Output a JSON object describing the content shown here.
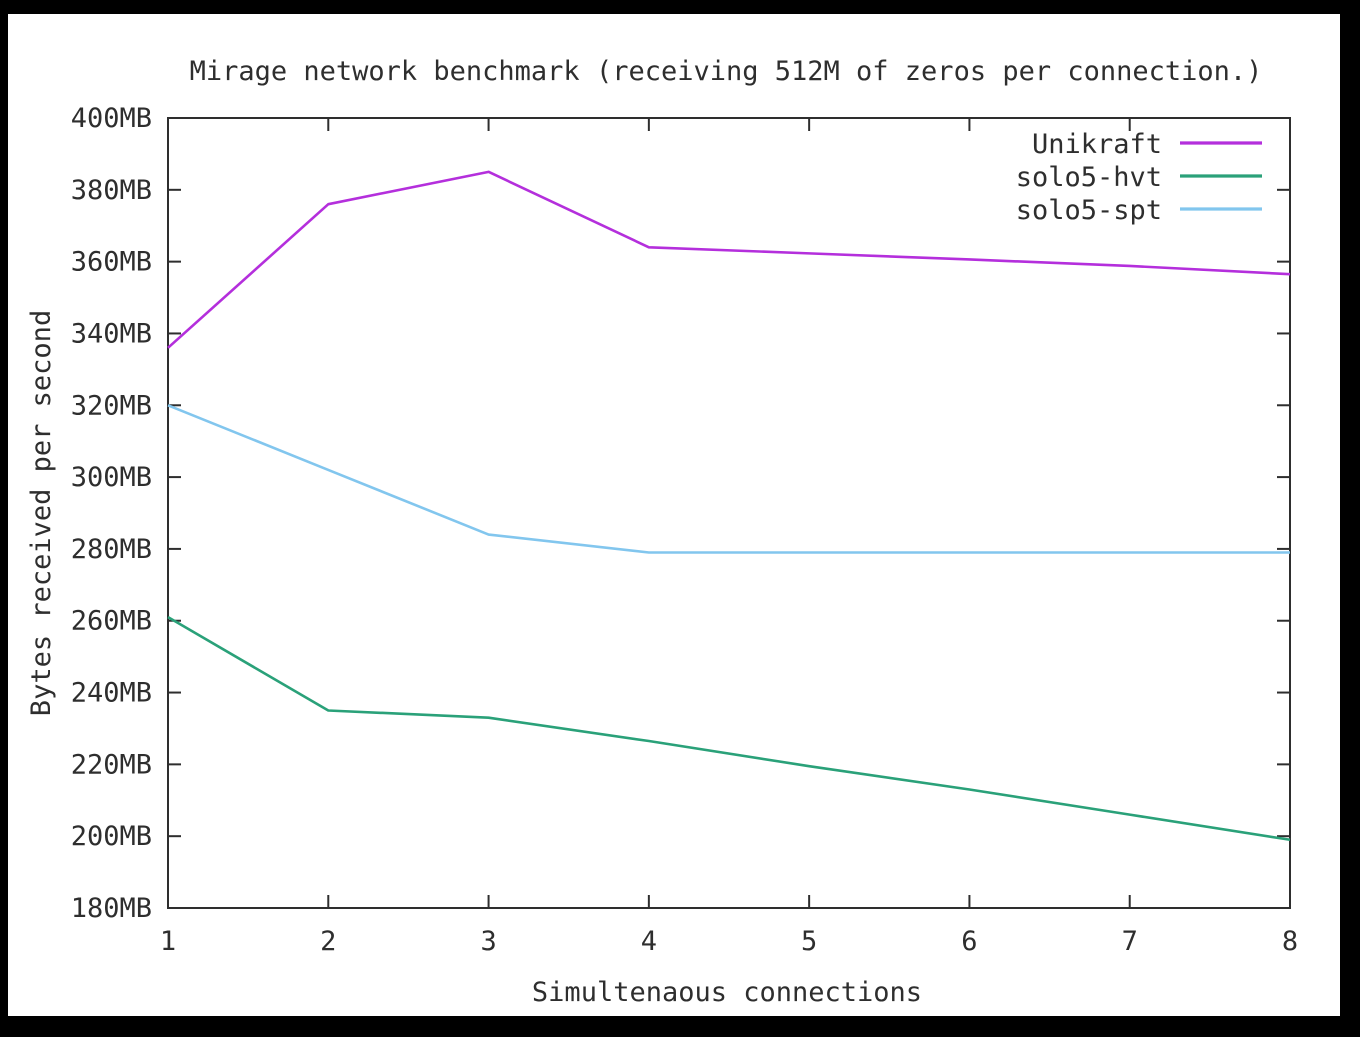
{
  "window": {
    "background_color": "#000000",
    "panel_color": "#ffffff"
  },
  "chart_data": {
    "type": "line",
    "title": "Mirage network benchmark (receiving 512M of zeros per connection.)",
    "xlabel": "Simultenaous connections",
    "ylabel": "Bytes received per second",
    "x": [
      1,
      2,
      3,
      4,
      5,
      6,
      7,
      8
    ],
    "xlim": [
      1,
      8
    ],
    "ylim": [
      180,
      400
    ],
    "yticks": [
      180,
      200,
      220,
      240,
      260,
      280,
      300,
      320,
      340,
      360,
      380,
      400
    ],
    "y_unit": "MB",
    "grid": false,
    "legend_position": "top-right-inside",
    "axis_color": "#2e2e2e",
    "text_color": "#2e2e2e",
    "series": [
      {
        "name": "Unikraft",
        "color": "#b42fdc",
        "values": [
          336,
          376,
          385,
          364,
          362.3,
          360.6,
          358.8,
          356.5
        ]
      },
      {
        "name": "solo5-hvt",
        "color": "#2aa179",
        "values": [
          261,
          235,
          233,
          226.5,
          219.5,
          213,
          206,
          199
        ]
      },
      {
        "name": "solo5-spt",
        "color": "#82c6ee",
        "values": [
          320,
          302,
          284,
          279,
          279,
          279,
          279,
          279
        ]
      }
    ]
  }
}
